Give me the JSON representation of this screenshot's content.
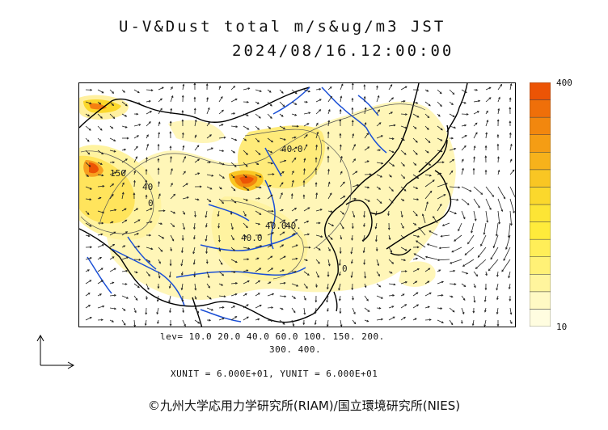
{
  "title": {
    "line1": "U-V&Dust total m/s&ug/m3 JST",
    "line2": "2024/08/16.12:00:00"
  },
  "colorbar": {
    "max_label": "400",
    "min_label": "10",
    "colors": [
      "#fffde0",
      "#fff9c4",
      "#fff59d",
      "#fff176",
      "#ffee58",
      "#ffeb3b",
      "#fde535",
      "#fbd82c",
      "#f9c623",
      "#f7b21b",
      "#f59d14",
      "#f2870e",
      "#ef6f09",
      "#ec5405"
    ]
  },
  "contour_labels": [
    "40.0",
    "150",
    "40",
    "0",
    "40.0",
    "40.0",
    "40.",
    "0"
  ],
  "legend": {
    "levels_line1": "lev= 10.0 20.0 40.0 60.0 100. 150. 200.",
    "levels_line2": "300. 400.",
    "units_line": "XUNIT = 6.000E+01, YUNIT = 6.000E+01"
  },
  "copyright": "©九州大学応用力学研究所(RIAM)/国立環境研究所(NIES)",
  "colors": {
    "coast": "#000000",
    "rivers": "#1a4fd6",
    "dust_low": "#fff6b0",
    "dust_mid": "#ffe45c",
    "dust_high": "#ff6a00"
  }
}
